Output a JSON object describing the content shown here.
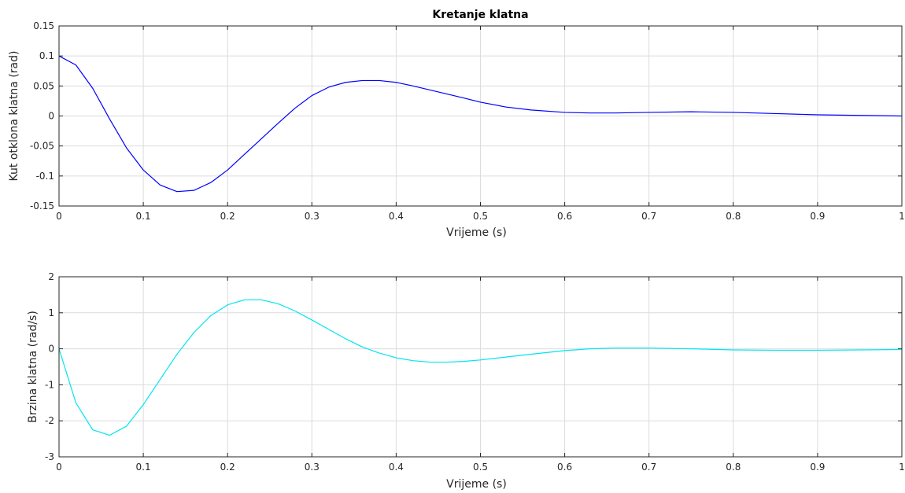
{
  "chart_data": [
    {
      "type": "line",
      "title": "Kretanje klatna",
      "xlabel": "Vrijeme (s)",
      "ylabel": "Kut otklona klatna (rad)",
      "xlim": [
        0,
        1
      ],
      "ylim": [
        -0.15,
        0.15
      ],
      "xticks": [
        "0",
        "0.1",
        "0.2",
        "0.3",
        "0.4",
        "0.5",
        "0.6",
        "0.7",
        "0.8",
        "0.9",
        "1"
      ],
      "yticks": [
        "-0.15",
        "-0.1",
        "-0.05",
        "0",
        "0.05",
        "0.1",
        "0.15"
      ],
      "grid": true,
      "series": [
        {
          "color": "#0000ff",
          "x": [
            0,
            0.02,
            0.04,
            0.06,
            0.08,
            0.1,
            0.12,
            0.14,
            0.16,
            0.18,
            0.2,
            0.22,
            0.24,
            0.26,
            0.28,
            0.3,
            0.32,
            0.34,
            0.36,
            0.38,
            0.4,
            0.42,
            0.45,
            0.48,
            0.5,
            0.53,
            0.56,
            0.6,
            0.63,
            0.66,
            0.7,
            0.75,
            0.8,
            0.85,
            0.9,
            0.95,
            1.0
          ],
          "y": [
            0.1,
            0.085,
            0.046,
            -0.005,
            -0.053,
            -0.09,
            -0.115,
            -0.126,
            -0.124,
            -0.111,
            -0.09,
            -0.064,
            -0.038,
            -0.012,
            0.013,
            0.034,
            0.048,
            0.056,
            0.059,
            0.059,
            0.056,
            0.05,
            0.04,
            0.03,
            0.023,
            0.015,
            0.01,
            0.006,
            0.005,
            0.005,
            0.006,
            0.007,
            0.006,
            0.004,
            0.002,
            0.001,
            0.0
          ]
        }
      ]
    },
    {
      "type": "line",
      "title": "",
      "xlabel": "Vrijeme (s)",
      "ylabel": "Brzina klatna (rad/s)",
      "xlim": [
        0,
        1
      ],
      "ylim": [
        -3,
        2
      ],
      "xticks": [
        "0",
        "0.1",
        "0.2",
        "0.3",
        "0.4",
        "0.5",
        "0.6",
        "0.7",
        "0.8",
        "0.9",
        "1"
      ],
      "yticks": [
        "-3",
        "-2",
        "-1",
        "0",
        "1",
        "2"
      ],
      "grid": true,
      "series": [
        {
          "color": "#00e5ee",
          "x": [
            0,
            0.02,
            0.04,
            0.06,
            0.08,
            0.1,
            0.12,
            0.14,
            0.16,
            0.18,
            0.2,
            0.22,
            0.24,
            0.26,
            0.28,
            0.3,
            0.32,
            0.34,
            0.36,
            0.38,
            0.4,
            0.42,
            0.44,
            0.46,
            0.48,
            0.5,
            0.53,
            0.56,
            0.6,
            0.63,
            0.66,
            0.7,
            0.75,
            0.8,
            0.85,
            0.9,
            0.95,
            1.0
          ],
          "y": [
            0,
            -1.5,
            -2.25,
            -2.4,
            -2.15,
            -1.55,
            -0.85,
            -0.15,
            0.45,
            0.92,
            1.22,
            1.36,
            1.36,
            1.25,
            1.05,
            0.8,
            0.54,
            0.28,
            0.05,
            -0.12,
            -0.25,
            -0.33,
            -0.37,
            -0.37,
            -0.35,
            -0.31,
            -0.23,
            -0.15,
            -0.05,
            0.0,
            0.02,
            0.02,
            0.0,
            -0.03,
            -0.04,
            -0.04,
            -0.03,
            -0.02
          ]
        }
      ]
    }
  ]
}
